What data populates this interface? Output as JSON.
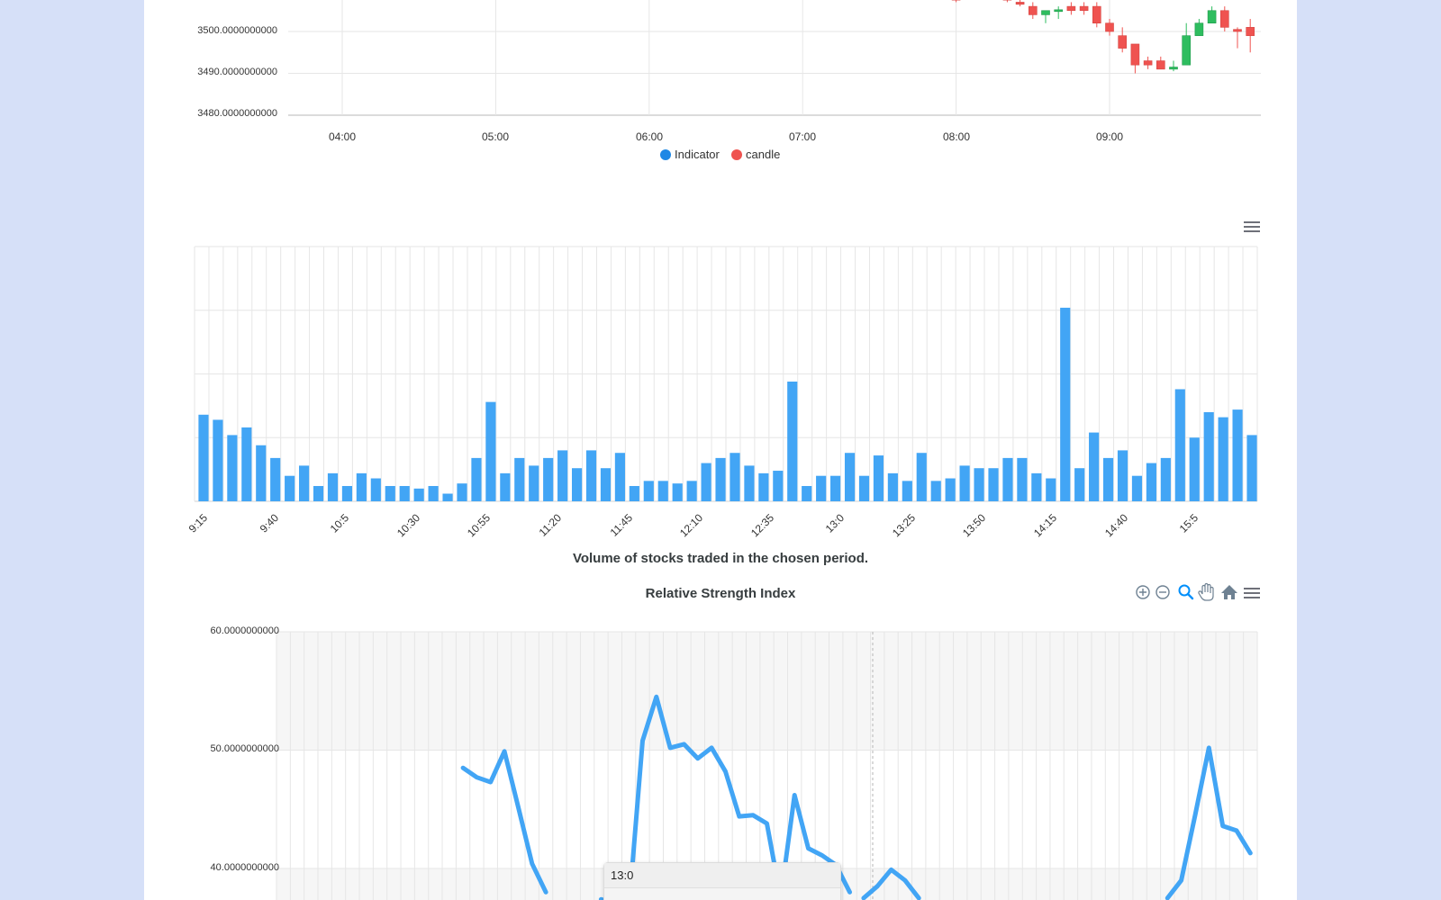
{
  "colors": {
    "background": "#d6e0f8",
    "indicator": "#1e88e5",
    "candle_down": "#ef5350",
    "candle_up": "#26a69a",
    "bar": "#42a5f5",
    "rsi_line": "#42a5f5",
    "grid": "#e6e6e6",
    "axis_text": "#333333"
  },
  "toolbars": {
    "volume": [
      "menu-icon"
    ],
    "rsi": [
      "zoom-in-icon",
      "zoom-out-icon",
      "zoom-select-icon",
      "pan-icon",
      "home-icon",
      "menu-icon"
    ]
  },
  "tooltip": {
    "title": "13:0"
  },
  "chart_data": [
    {
      "type": "candlestick",
      "title": "",
      "y_ticks": [
        "3500.0000000000",
        "3490.0000000000",
        "3480.0000000000"
      ],
      "y_tick_values": [
        3500,
        3490,
        3480
      ],
      "x_ticks": [
        "04:00",
        "05:00",
        "06:00",
        "07:00",
        "08:00",
        "09:00"
      ],
      "legend": [
        "Indicator",
        "candle"
      ],
      "legend_position": "bottom",
      "candles": [
        {
          "time": "08:00",
          "o": 3508,
          "h": 3509,
          "l": 3507,
          "c": 3507.5
        },
        {
          "time": "08:20",
          "o": 3508,
          "h": 3509,
          "l": 3507,
          "c": 3507.5
        },
        {
          "time": "08:25",
          "o": 3507,
          "h": 3508,
          "l": 3506,
          "c": 3506.5
        },
        {
          "time": "08:30",
          "o": 3506,
          "h": 3507,
          "l": 3503,
          "c": 3504
        },
        {
          "time": "08:35",
          "o": 3504,
          "h": 3505,
          "l": 3502,
          "c": 3505
        },
        {
          "time": "08:40",
          "o": 3505,
          "h": 3506,
          "l": 3503,
          "c": 3505.2
        },
        {
          "time": "08:45",
          "o": 3506,
          "h": 3507,
          "l": 3504,
          "c": 3505
        },
        {
          "time": "08:50",
          "o": 3506,
          "h": 3507,
          "l": 3504,
          "c": 3505
        },
        {
          "time": "08:55",
          "o": 3506,
          "h": 3507,
          "l": 3501,
          "c": 3502
        },
        {
          "time": "09:00",
          "o": 3502,
          "h": 3503,
          "l": 3499,
          "c": 3500
        },
        {
          "time": "09:05",
          "o": 3499,
          "h": 3501,
          "l": 3495,
          "c": 3496
        },
        {
          "time": "09:10",
          "o": 3497,
          "h": 3497,
          "l": 3490,
          "c": 3492
        },
        {
          "time": "09:15",
          "o": 3493,
          "h": 3494,
          "l": 3491,
          "c": 3492
        },
        {
          "time": "09:20",
          "o": 3493,
          "h": 3494,
          "l": 3491,
          "c": 3491
        },
        {
          "time": "09:25",
          "o": 3491,
          "h": 3493,
          "l": 3490.5,
          "c": 3491.5
        },
        {
          "time": "09:30",
          "o": 3492,
          "h": 3502,
          "l": 3492,
          "c": 3499
        },
        {
          "time": "09:35",
          "o": 3499,
          "h": 3503,
          "l": 3499,
          "c": 3502
        },
        {
          "time": "09:40",
          "o": 3502,
          "h": 3506,
          "l": 3502,
          "c": 3505
        },
        {
          "time": "09:45",
          "o": 3505,
          "h": 3506,
          "l": 3500,
          "c": 3501
        },
        {
          "time": "09:50",
          "o": 3500.5,
          "h": 3501,
          "l": 3496,
          "c": 3500
        },
        {
          "time": "09:55",
          "o": 3501,
          "h": 3503,
          "l": 3495,
          "c": 3499
        }
      ]
    },
    {
      "type": "bar",
      "title": "Volume of stocks traded in the chosen period.",
      "x_ticks": [
        "9:15",
        "9:40",
        "10:5",
        "10:30",
        "10:55",
        "11:20",
        "11:45",
        "12:10",
        "12:35",
        "13:0",
        "13:25",
        "13:50",
        "14:15",
        "14:40",
        "15:5"
      ],
      "values": [
        34,
        32,
        26,
        29,
        22,
        17,
        10,
        14,
        6,
        11,
        6,
        11,
        9,
        6,
        6,
        5,
        6,
        3,
        7,
        17,
        39,
        11,
        17,
        14,
        17,
        20,
        13,
        20,
        13,
        19,
        6,
        8,
        8,
        7,
        8,
        15,
        17,
        19,
        14,
        11,
        12,
        47,
        6,
        10,
        10,
        19,
        10,
        18,
        11,
        8,
        19,
        8,
        9,
        14,
        13,
        13,
        17,
        17,
        11,
        9,
        76,
        13,
        27,
        17,
        20,
        10,
        15,
        17,
        44,
        25,
        35,
        33,
        36,
        26
      ],
      "ylim": [
        0,
        100
      ],
      "grid": true
    },
    {
      "type": "line",
      "title": "Relative Strength Index",
      "y_ticks": [
        "60.0000000000",
        "50.0000000000",
        "40.0000000000"
      ],
      "y_tick_values": [
        60,
        50,
        40
      ],
      "ylim": [
        38.3,
        60
      ],
      "grid": true,
      "segments": [
        [
          [
            13,
            48.5
          ],
          [
            14,
            47.7
          ],
          [
            15,
            47.3
          ],
          [
            16,
            49.9
          ],
          [
            17,
            45.2
          ],
          [
            18,
            40.4
          ],
          [
            19,
            38.0
          ]
        ],
        [
          [
            23,
            37.4
          ],
          [
            24,
            37.0
          ],
          [
            25,
            36.5
          ],
          [
            26,
            50.8
          ],
          [
            27,
            54.5
          ],
          [
            28,
            50.2
          ],
          [
            29,
            50.5
          ],
          [
            30,
            49.3
          ],
          [
            31,
            50.2
          ],
          [
            32,
            48.2
          ],
          [
            33,
            44.4
          ],
          [
            34,
            44.5
          ],
          [
            35,
            43.8
          ],
          [
            36,
            37.5
          ],
          [
            37,
            46.2
          ],
          [
            38,
            41.7
          ],
          [
            39,
            41.1
          ],
          [
            40,
            40.3
          ],
          [
            41,
            38.0
          ]
        ],
        [
          [
            42,
            37.5
          ],
          [
            43,
            38.5
          ],
          [
            44,
            39.9
          ],
          [
            45,
            39.0
          ],
          [
            46,
            37.5
          ]
        ],
        [
          [
            64,
            37.5
          ],
          [
            65,
            39.0
          ],
          [
            66,
            44.5
          ],
          [
            67,
            50.2
          ],
          [
            68,
            43.6
          ],
          [
            69,
            43.2
          ],
          [
            70,
            41.3
          ]
        ]
      ]
    }
  ]
}
